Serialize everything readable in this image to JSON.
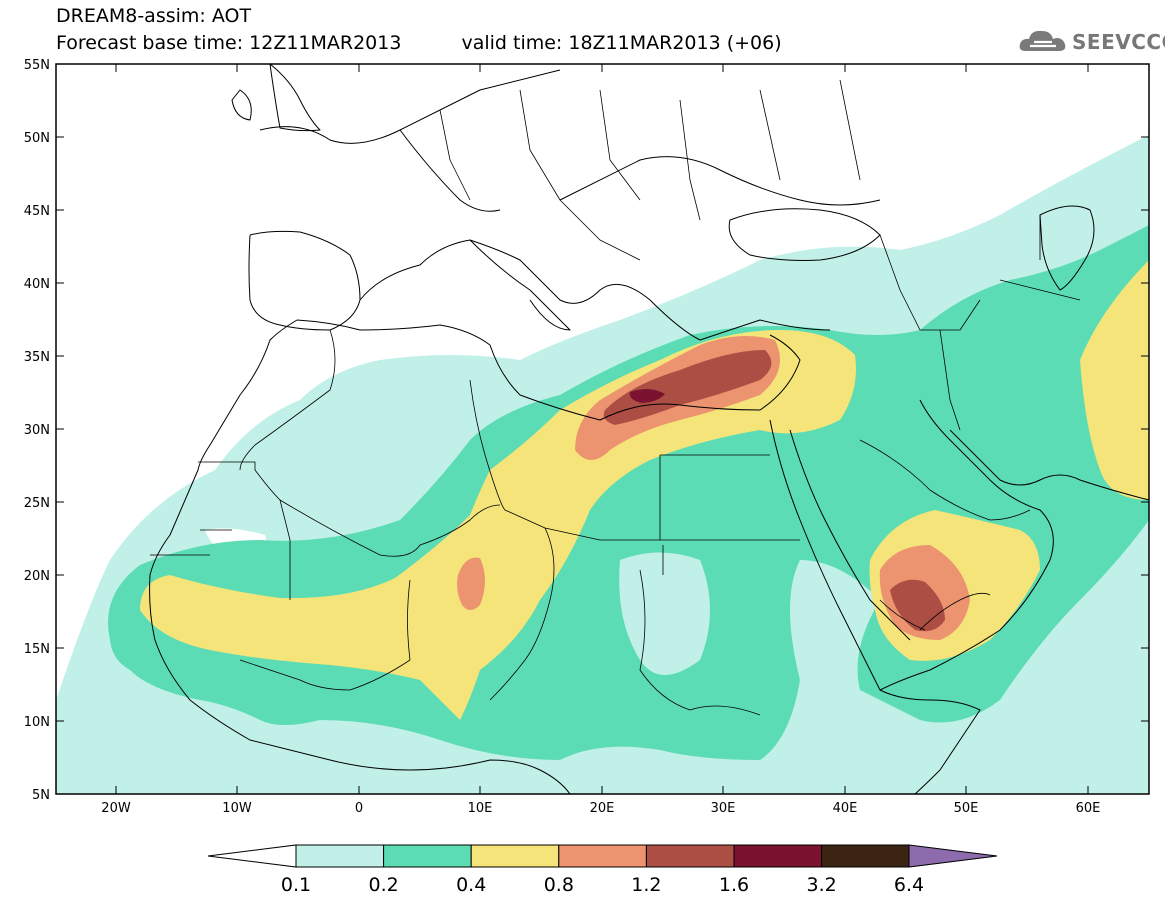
{
  "header": {
    "title_line1": "DREAM8-assim: AOT",
    "base_time": "Forecast base time: 12Z11MAR2013",
    "valid_time": "valid time: 18Z11MAR2013 (+06)"
  },
  "logo": {
    "text": "SEEVCCC",
    "icon": "cloud-icon"
  },
  "map": {
    "lat_labels": [
      "55N",
      "50N",
      "45N",
      "40N",
      "35N",
      "30N",
      "25N",
      "20N",
      "15N",
      "10N",
      "5N"
    ],
    "lon_labels": [
      "20W",
      "10W",
      "0",
      "10E",
      "20E",
      "30E",
      "40E",
      "50E",
      "60E"
    ]
  },
  "colorbar": {
    "labels": [
      "0.1",
      "0.2",
      "0.4",
      "0.8",
      "1.2",
      "1.6",
      "3.2",
      "6.4"
    ],
    "colors": {
      "below": "#ffffff",
      "c1": "#c0f0e8",
      "c2": "#5cdcb4",
      "c3": "#f4e47a",
      "c4": "#ec9470",
      "c5": "#ad4e44",
      "c6": "#7a1230",
      "c7": "#3c2414",
      "above": "#8c6cac"
    }
  }
}
